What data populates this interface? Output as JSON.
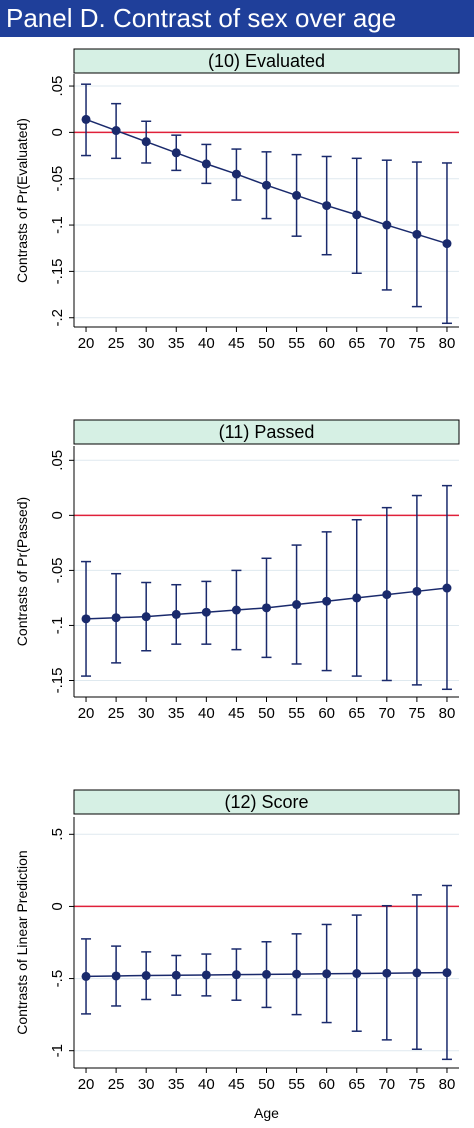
{
  "header": {
    "title": "Panel D. Contrast of sex over age"
  },
  "colors": {
    "header_bg": "#1f3f9a",
    "strip_bg": "#d6f0e4",
    "series": "#1a2a6c",
    "reference_line": "#e0203a",
    "grid": "#dfe9ef"
  },
  "xlabel": "Age",
  "chart_data": [
    {
      "type": "line",
      "title": "(10) Evaluated",
      "ylabel": "Contrasts of Pr(Evaluated)",
      "xlabel": "",
      "x": [
        20,
        25,
        30,
        35,
        40,
        45,
        50,
        55,
        60,
        65,
        70,
        75,
        80
      ],
      "xticks": [
        "20",
        "25",
        "30",
        "35",
        "40",
        "45",
        "50",
        "55",
        "60",
        "65",
        "70",
        "75",
        "80"
      ],
      "ylim": [
        -0.21,
        0.063
      ],
      "yticks": [
        0.05,
        0,
        -0.05,
        -0.1,
        -0.15,
        -0.2
      ],
      "ytick_labels": [
        ".05",
        "0",
        "-.05",
        "-.1",
        "-.15",
        "-.2"
      ],
      "reference_y": 0,
      "series": [
        {
          "values": [
            0.014,
            0.002,
            -0.01,
            -0.022,
            -0.034,
            -0.045,
            -0.057,
            -0.068,
            -0.079,
            -0.089,
            -0.1,
            -0.11,
            -0.12
          ],
          "ci_low": [
            -0.025,
            -0.028,
            -0.033,
            -0.041,
            -0.055,
            -0.073,
            -0.093,
            -0.112,
            -0.132,
            -0.152,
            -0.17,
            -0.188,
            -0.206
          ],
          "ci_high": [
            0.052,
            0.031,
            0.012,
            -0.003,
            -0.013,
            -0.018,
            -0.021,
            -0.024,
            -0.026,
            -0.028,
            -0.03,
            -0.032,
            -0.033
          ]
        }
      ]
    },
    {
      "type": "line",
      "title": "(11) Passed",
      "ylabel": "Contrasts of Pr(Passed)",
      "xlabel": "",
      "x": [
        20,
        25,
        30,
        35,
        40,
        45,
        50,
        55,
        60,
        65,
        70,
        75,
        80
      ],
      "xticks": [
        "20",
        "25",
        "30",
        "35",
        "40",
        "45",
        "50",
        "55",
        "60",
        "65",
        "70",
        "75",
        "80"
      ],
      "ylim": [
        -0.165,
        0.063
      ],
      "yticks": [
        0.05,
        0,
        -0.05,
        -0.1,
        -0.15
      ],
      "ytick_labels": [
        ".05",
        "0",
        "-.05",
        "-.1",
        "-.15"
      ],
      "reference_y": 0,
      "series": [
        {
          "values": [
            -0.094,
            -0.093,
            -0.092,
            -0.09,
            -0.088,
            -0.086,
            -0.084,
            -0.081,
            -0.078,
            -0.075,
            -0.072,
            -0.069,
            -0.066
          ],
          "ci_low": [
            -0.146,
            -0.134,
            -0.123,
            -0.117,
            -0.117,
            -0.122,
            -0.129,
            -0.135,
            -0.141,
            -0.146,
            -0.15,
            -0.154,
            -0.158
          ],
          "ci_high": [
            -0.042,
            -0.053,
            -0.061,
            -0.063,
            -0.06,
            -0.05,
            -0.039,
            -0.027,
            -0.015,
            -0.004,
            0.007,
            0.018,
            0.027
          ]
        }
      ]
    },
    {
      "type": "line",
      "title": "(12) Score",
      "ylabel": "Contrasts of Linear Prediction",
      "xlabel": "Age",
      "x": [
        20,
        25,
        30,
        35,
        40,
        45,
        50,
        55,
        60,
        65,
        70,
        75,
        80
      ],
      "xticks": [
        "20",
        "25",
        "30",
        "35",
        "40",
        "45",
        "50",
        "55",
        "60",
        "65",
        "70",
        "75",
        "80"
      ],
      "ylim": [
        -1.12,
        0.62
      ],
      "yticks": [
        0.5,
        0,
        -0.5,
        -1
      ],
      "ytick_labels": [
        ".5",
        "0",
        "-.5",
        "-1"
      ],
      "reference_y": 0,
      "series": [
        {
          "values": [
            -0.485,
            -0.482,
            -0.479,
            -0.477,
            -0.475,
            -0.473,
            -0.471,
            -0.469,
            -0.467,
            -0.465,
            -0.463,
            -0.461,
            -0.459
          ],
          "ci_low": [
            -0.745,
            -0.69,
            -0.645,
            -0.615,
            -0.62,
            -0.65,
            -0.7,
            -0.75,
            -0.805,
            -0.865,
            -0.925,
            -0.99,
            -1.06
          ],
          "ci_high": [
            -0.225,
            -0.275,
            -0.315,
            -0.34,
            -0.33,
            -0.295,
            -0.245,
            -0.19,
            -0.125,
            -0.06,
            0.005,
            0.08,
            0.145
          ]
        }
      ]
    }
  ]
}
